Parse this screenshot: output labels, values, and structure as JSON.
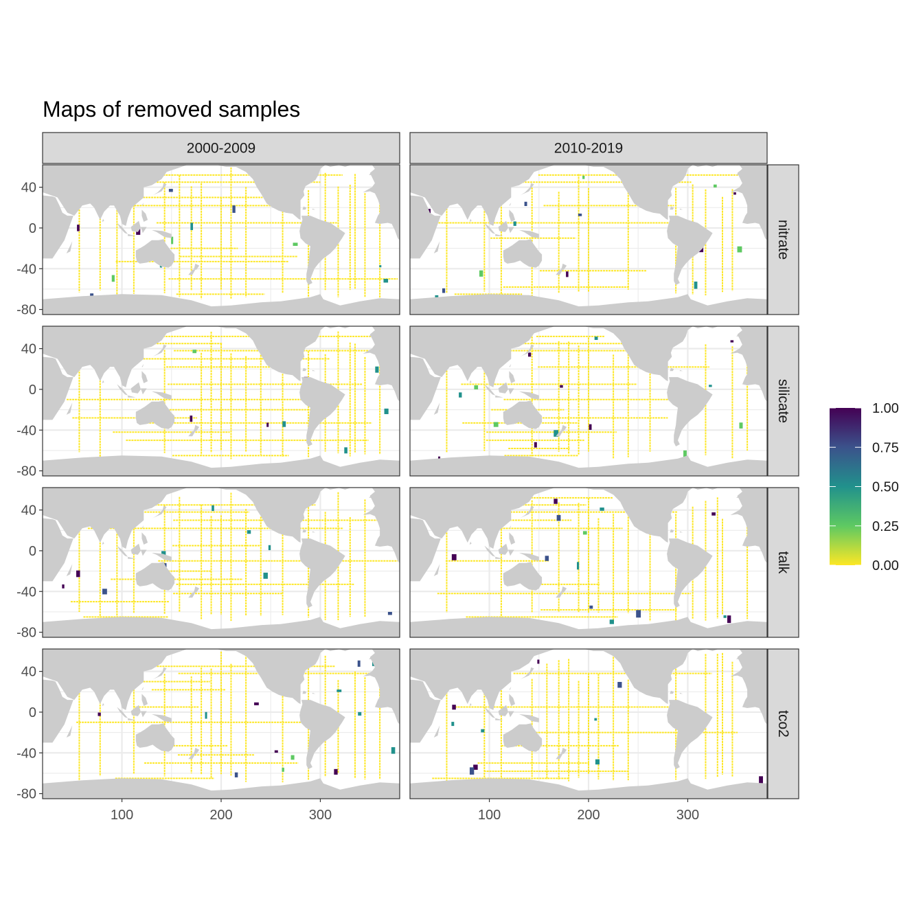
{
  "chart_data": {
    "type": "heatmap",
    "title": "Maps of removed samples",
    "xlabel": "",
    "ylabel": "",
    "xlim": [
      20,
      380
    ],
    "ylim": [
      -85,
      62
    ],
    "x_ticks": [
      100,
      200,
      300
    ],
    "y_ticks": [
      40,
      0,
      -40,
      -80
    ],
    "x_tick_labels": [
      "100",
      "200",
      "300"
    ],
    "y_tick_labels": [
      "40",
      "0",
      "-40",
      "-80"
    ],
    "col_facets": [
      "2000-2009",
      "2010-2019"
    ],
    "row_facets": [
      "nitrate",
      "silicate",
      "talk",
      "tco2"
    ],
    "grid": true,
    "legend": {
      "position": "right",
      "title": "",
      "range": [
        0,
        1
      ],
      "breaks": [
        1.0,
        0.75,
        0.5,
        0.25,
        0.0
      ],
      "labels": [
        "1.00",
        "0.75",
        "0.50",
        "0.25",
        "0.00"
      ],
      "colors": [
        "#fde725",
        "#5ec962",
        "#21918c",
        "#3b528b",
        "#440154"
      ]
    },
    "colors": {
      "land": "#cccccc",
      "strip_fill": "#d9d9d9",
      "grid": "#ebebeb",
      "panel_border": "#333333"
    },
    "land_polygons": [
      [
        [
          20,
          62
        ],
        [
          20,
          35
        ],
        [
          35,
          30
        ],
        [
          45,
          15
        ],
        [
          52,
          12
        ],
        [
          60,
          22
        ],
        [
          68,
          24
        ],
        [
          72,
          20
        ],
        [
          78,
          8
        ],
        [
          82,
          16
        ],
        [
          88,
          22
        ],
        [
          92,
          22
        ],
        [
          98,
          12
        ],
        [
          100,
          4
        ],
        [
          104,
          2
        ],
        [
          106,
          10
        ],
        [
          110,
          20
        ],
        [
          122,
          30
        ],
        [
          122,
          40
        ],
        [
          130,
          42
        ],
        [
          140,
          48
        ],
        [
          145,
          55
        ],
        [
          160,
          60
        ],
        [
          175,
          65
        ],
        [
          185,
          66
        ],
        [
          190,
          66
        ],
        [
          195,
          62
        ],
        [
          205,
          60
        ],
        [
          215,
          60
        ],
        [
          225,
          55
        ],
        [
          232,
          48
        ],
        [
          236,
          40
        ],
        [
          240,
          34
        ],
        [
          246,
          24
        ],
        [
          252,
          20
        ],
        [
          258,
          17
        ],
        [
          265,
          15
        ],
        [
          272,
          14
        ],
        [
          278,
          9
        ],
        [
          280,
          8
        ],
        [
          280,
          62
        ]
      ],
      [
        [
          20,
          -35
        ],
        [
          20,
          -30
        ],
        [
          30,
          -30
        ],
        [
          40,
          -15
        ],
        [
          42,
          -12
        ],
        [
          51,
          12
        ],
        [
          45,
          12
        ],
        [
          40,
          15
        ],
        [
          37,
          22
        ],
        [
          33,
          30
        ],
        [
          30,
          31
        ],
        [
          20,
          32
        ]
      ],
      [
        [
          281,
          12
        ],
        [
          290,
          12
        ],
        [
          300,
          8
        ],
        [
          310,
          5
        ],
        [
          325,
          -5
        ],
        [
          322,
          -10
        ],
        [
          315,
          -20
        ],
        [
          310,
          -25
        ],
        [
          303,
          -30
        ],
        [
          298,
          -35
        ],
        [
          294,
          -40
        ],
        [
          292,
          -45
        ],
        [
          290,
          -50
        ],
        [
          292,
          -54
        ],
        [
          288,
          -56
        ],
        [
          286,
          -52
        ],
        [
          286,
          -45
        ],
        [
          288,
          -35
        ],
        [
          289,
          -25
        ],
        [
          290,
          -18
        ],
        [
          285,
          -15
        ],
        [
          280,
          -10
        ],
        [
          279,
          -3
        ],
        [
          280,
          2
        ],
        [
          282,
          8
        ]
      ],
      [
        [
          345,
          62
        ],
        [
          320,
          62
        ],
        [
          310,
          60
        ],
        [
          305,
          62
        ],
        [
          300,
          58
        ],
        [
          298,
          52
        ],
        [
          295,
          47
        ],
        [
          290,
          44
        ],
        [
          285,
          41
        ],
        [
          283,
          36
        ],
        [
          284,
          32
        ],
        [
          279,
          26
        ],
        [
          276,
          25
        ],
        [
          280,
          31
        ],
        [
          278,
          40
        ],
        [
          275,
          45
        ],
        [
          275,
          62
        ]
      ],
      [
        [
          315,
          83
        ],
        [
          318,
          62
        ],
        [
          325,
          60
        ],
        [
          340,
          65
        ],
        [
          345,
          70
        ],
        [
          335,
          78
        ]
      ],
      [
        [
          343,
          35
        ],
        [
          350,
          36
        ],
        [
          355,
          34
        ],
        [
          358,
          28
        ],
        [
          360,
          22
        ],
        [
          360,
          15
        ],
        [
          358,
          12
        ],
        [
          355,
          5
        ],
        [
          360,
          4
        ],
        [
          368,
          5
        ],
        [
          372,
          4
        ],
        [
          375,
          -2
        ],
        [
          378,
          -10
        ],
        [
          380,
          -12
        ],
        [
          380,
          62
        ],
        [
          352,
          62
        ],
        [
          355,
          58
        ],
        [
          350,
          54
        ],
        [
          352,
          50
        ],
        [
          355,
          44
        ],
        [
          352,
          40
        ]
      ],
      [
        [
          114,
          -22
        ],
        [
          118,
          -20
        ],
        [
          123,
          -17
        ],
        [
          130,
          -12
        ],
        [
          137,
          -12
        ],
        [
          142,
          -11
        ],
        [
          144,
          -15
        ],
        [
          147,
          -19
        ],
        [
          150,
          -23
        ],
        [
          153,
          -26
        ],
        [
          153,
          -32
        ],
        [
          150,
          -37
        ],
        [
          147,
          -39
        ],
        [
          140,
          -38
        ],
        [
          135,
          -35
        ],
        [
          131,
          -32
        ],
        [
          125,
          -34
        ],
        [
          118,
          -35
        ],
        [
          115,
          -33
        ],
        [
          114,
          -28
        ]
      ],
      [
        [
          20,
          -70
        ],
        [
          60,
          -67
        ],
        [
          100,
          -65
        ],
        [
          140,
          -66
        ],
        [
          170,
          -71
        ],
        [
          190,
          -77
        ],
        [
          210,
          -76
        ],
        [
          240,
          -73
        ],
        [
          260,
          -72
        ],
        [
          290,
          -68
        ],
        [
          300,
          -65
        ],
        [
          303,
          -70
        ],
        [
          320,
          -76
        ],
        [
          340,
          -72
        ],
        [
          360,
          -69
        ],
        [
          380,
          -70
        ],
        [
          380,
          -90
        ],
        [
          20,
          -90
        ]
      ],
      [
        [
          172,
          -41
        ],
        [
          175,
          -41
        ],
        [
          178,
          -37
        ],
        [
          174,
          -35
        ],
        [
          173,
          -39
        ]
      ],
      [
        [
          167,
          -46
        ],
        [
          171,
          -46
        ],
        [
          174,
          -41
        ],
        [
          171,
          -41
        ]
      ],
      [
        [
          130,
          -2
        ],
        [
          141,
          -3
        ],
        [
          150,
          -6
        ],
        [
          150,
          -10
        ],
        [
          143,
          -9
        ],
        [
          135,
          -4
        ]
      ],
      [
        [
          95,
          5
        ],
        [
          100,
          1
        ],
        [
          106,
          -6
        ],
        [
          103,
          -5
        ],
        [
          98,
          0
        ]
      ],
      [
        [
          106,
          -6
        ],
        [
          114,
          -8
        ],
        [
          106,
          -8
        ]
      ],
      [
        [
          109,
          1
        ],
        [
          117,
          7
        ],
        [
          119,
          0
        ],
        [
          116,
          -4
        ],
        [
          110,
          -3
        ]
      ],
      [
        [
          119,
          1
        ],
        [
          125,
          1
        ],
        [
          121,
          -5
        ]
      ],
      [
        [
          131,
          32
        ],
        [
          136,
          35
        ],
        [
          141,
          40
        ],
        [
          142,
          44
        ],
        [
          145,
          43
        ],
        [
          140,
          36
        ],
        [
          133,
          33
        ]
      ],
      [
        [
          120,
          22
        ],
        [
          122,
          25
        ],
        [
          121,
          22
        ]
      ],
      [
        [
          120,
          18
        ],
        [
          124,
          14
        ],
        [
          126,
          8
        ],
        [
          122,
          6
        ],
        [
          120,
          12
        ]
      ],
      [
        [
          44,
          -25
        ],
        [
          49,
          -15
        ],
        [
          50,
          -13
        ],
        [
          48,
          -23
        ]
      ],
      [
        [
          80,
          6
        ],
        [
          82,
          7
        ],
        [
          81,
          9
        ]
      ],
      [
        [
          354,
          50
        ],
        [
          359,
          52
        ],
        [
          362,
          56
        ],
        [
          358,
          58
        ],
        [
          355,
          55
        ]
      ],
      [
        [
          349,
          52
        ],
        [
          354,
          52
        ],
        [
          352,
          55
        ]
      ],
      [
        [
          337,
          64
        ],
        [
          347,
          64
        ],
        [
          345,
          66
        ],
        [
          338,
          66
        ]
      ],
      [
        [
          282,
          18
        ],
        [
          285,
          18
        ],
        [
          286,
          20
        ],
        [
          283,
          21
        ]
      ],
      [
        [
          285,
          23
        ],
        [
          288,
          21
        ],
        [
          290,
          20
        ]
      ],
      [
        [
          292,
          18
        ],
        [
          295,
          18
        ],
        [
          292,
          19
        ]
      ]
    ]
  }
}
